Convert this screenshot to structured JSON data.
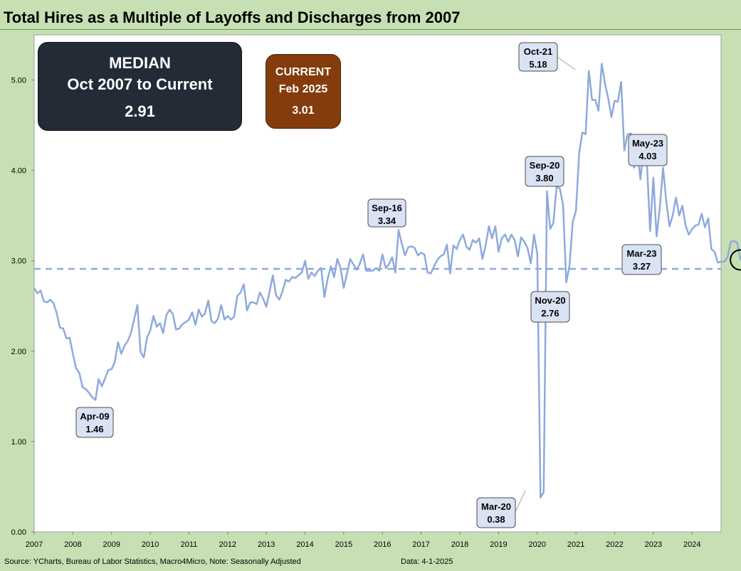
{
  "title": "Total Hires as a Multiple of Layoffs and Discharges from 2007",
  "footer": {
    "source": "Source: YCharts, Bureau of Labor Statistics, Macro4Micro, Note: Seasonally Adjusted",
    "date": "Data: 4-1-2025"
  },
  "median_box": {
    "label": "MEDIAN",
    "period": "Oct 2007 to Current",
    "value": "2.91"
  },
  "current_box": {
    "label": "CURRENT",
    "period": "Feb 2025",
    "value": "3.01"
  },
  "colors": {
    "background": "#c6e0b4",
    "plot_background": "#ffffff",
    "series_line": "#8eaadb",
    "median_line": "#8eaadb",
    "median_box": "#222b36",
    "current_box": "#843c0c",
    "callout_fill": "#dae3f3"
  },
  "chart_data": {
    "type": "line",
    "title": "Total Hires as a Multiple of Layoffs and Discharges from 2007",
    "xlabel": "",
    "ylabel": "",
    "ylim": [
      0,
      5.5
    ],
    "yticks": [
      0,
      1,
      2,
      3,
      4,
      5
    ],
    "ytick_labels": [
      "0.00",
      "1.00",
      "2.00",
      "3.00",
      "4.00",
      "5.00"
    ],
    "xlim": [
      2007.0,
      2024.75
    ],
    "xtick_labels": [
      "2007",
      "2008",
      "2009",
      "2010",
      "2011",
      "2012",
      "2013",
      "2014",
      "2015",
      "2016",
      "2017",
      "2018",
      "2019",
      "2020",
      "2021",
      "2022",
      "2023",
      "2024"
    ],
    "grid": false,
    "median": 2.91,
    "series": [
      {
        "name": "Hires / Layoffs and Discharges",
        "start": "2007-01",
        "step": "monthly",
        "values": [
          2.7,
          2.64,
          2.67,
          2.55,
          2.54,
          2.57,
          2.53,
          2.42,
          2.26,
          2.25,
          2.14,
          2.15,
          1.97,
          1.81,
          1.76,
          1.6,
          1.58,
          1.54,
          1.49,
          1.46,
          1.69,
          1.61,
          1.7,
          1.79,
          1.8,
          1.88,
          2.1,
          1.97,
          2.06,
          2.11,
          2.2,
          2.35,
          2.51,
          1.99,
          1.93,
          2.15,
          2.23,
          2.39,
          2.27,
          2.31,
          2.2,
          2.4,
          2.46,
          2.41,
          2.24,
          2.25,
          2.3,
          2.32,
          2.35,
          2.43,
          2.29,
          2.46,
          2.38,
          2.42,
          2.56,
          2.33,
          2.31,
          2.36,
          2.51,
          2.35,
          2.39,
          2.35,
          2.38,
          2.61,
          2.65,
          2.74,
          2.45,
          2.54,
          2.54,
          2.52,
          2.65,
          2.58,
          2.49,
          2.66,
          2.84,
          2.62,
          2.57,
          2.66,
          2.79,
          2.77,
          2.82,
          2.81,
          2.84,
          2.87,
          3.0,
          2.8,
          2.87,
          2.83,
          2.89,
          2.92,
          2.6,
          2.8,
          2.94,
          2.82,
          3.02,
          2.92,
          2.7,
          2.86,
          3.02,
          2.96,
          2.9,
          2.97,
          3.07,
          2.89,
          2.89,
          2.89,
          2.92,
          2.89,
          3.07,
          2.92,
          2.96,
          3.04,
          2.87,
          3.34,
          3.19,
          3.06,
          3.15,
          3.16,
          3.14,
          3.06,
          3.09,
          3.07,
          2.87,
          2.86,
          2.94,
          3.01,
          3.05,
          3.07,
          3.18,
          2.86,
          3.17,
          3.13,
          3.23,
          3.29,
          3.16,
          3.12,
          3.23,
          3.2,
          3.25,
          3.02,
          3.17,
          3.38,
          3.25,
          3.38,
          3.1,
          3.25,
          3.29,
          3.21,
          3.29,
          3.23,
          3.05,
          3.26,
          3.21,
          3.14,
          2.97,
          3.29,
          3.08,
          0.38,
          0.44,
          3.77,
          3.35,
          3.42,
          3.82,
          3.8,
          3.62,
          2.76,
          2.95,
          3.43,
          3.55,
          4.2,
          4.42,
          4.4,
          5.1,
          4.78,
          4.78,
          4.66,
          5.18,
          4.96,
          4.8,
          4.59,
          4.77,
          4.76,
          4.98,
          4.22,
          4.4,
          4.41,
          4.03,
          4.24,
          3.9,
          4.24,
          4.09,
          3.33,
          3.92,
          3.27,
          3.58,
          4.03,
          3.66,
          3.38,
          3.5,
          3.7,
          3.5,
          3.61,
          3.39,
          3.29,
          3.35,
          3.39,
          3.4,
          3.52,
          3.37,
          3.47,
          3.13,
          3.1,
          2.98,
          2.99,
          2.99,
          3.04,
          3.21,
          3.22,
          3.2,
          3.01
        ]
      }
    ],
    "annotations": [
      {
        "label": "Apr-09",
        "value": "1.46"
      },
      {
        "label": "Sep-16",
        "value": "3.34"
      },
      {
        "label": "Mar-20",
        "value": "0.38"
      },
      {
        "label": "Sep-20",
        "value": "3.80"
      },
      {
        "label": "Nov-20",
        "value": "2.76"
      },
      {
        "label": "Oct-21",
        "value": "5.18"
      },
      {
        "label": "May-23",
        "value": "4.03"
      },
      {
        "label": "Mar-23",
        "value": "3.27"
      }
    ]
  }
}
